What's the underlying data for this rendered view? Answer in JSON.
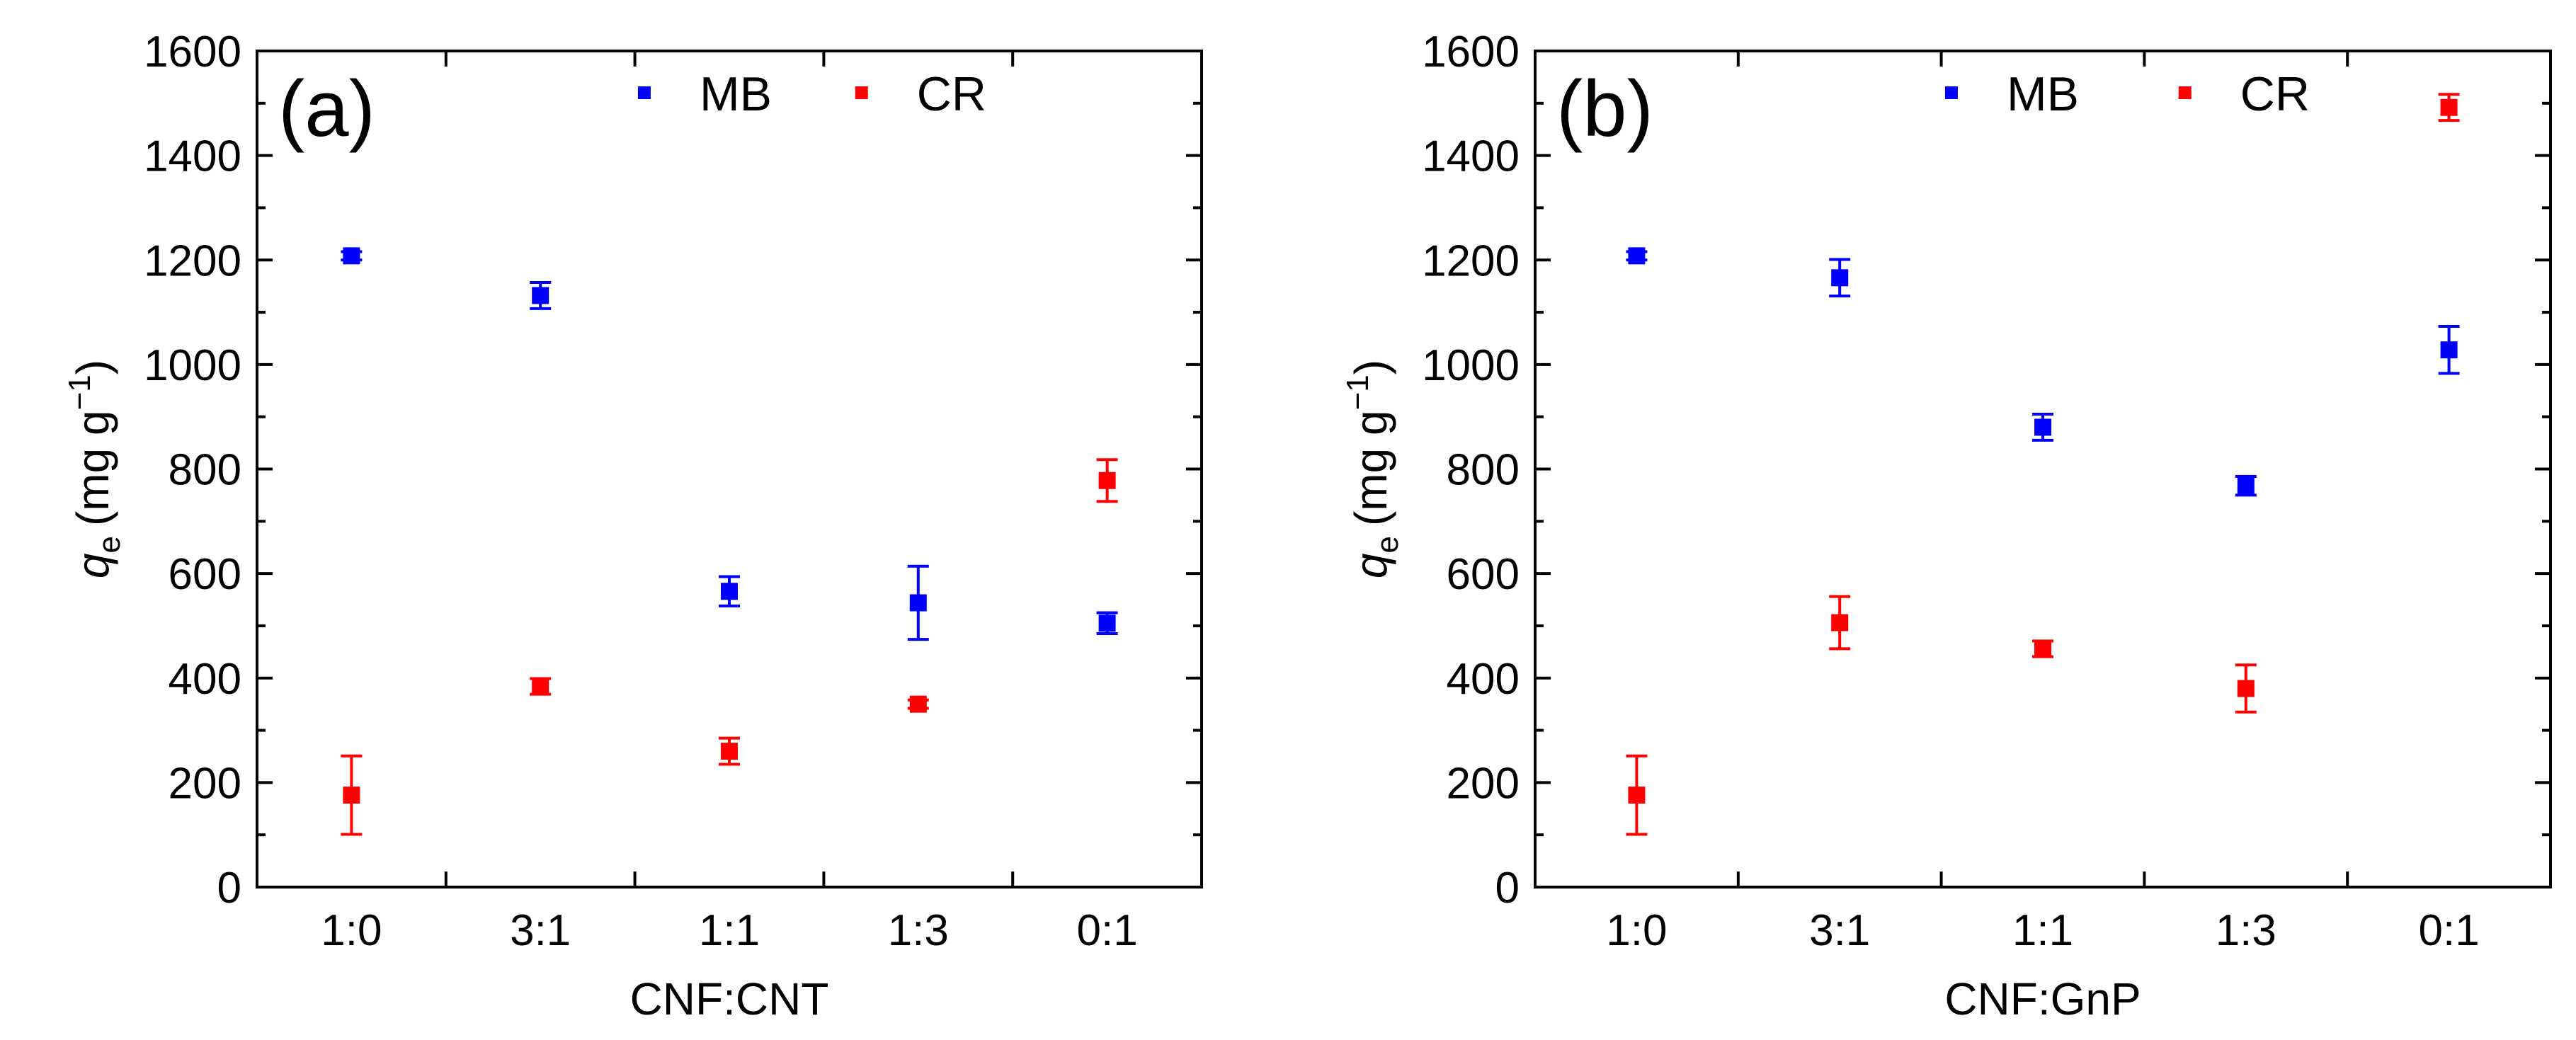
{
  "chart_data": [
    {
      "type": "scatter",
      "panel_label": "(a)",
      "xlabel": "CNF:CNT",
      "ylabel_main": "q",
      "ylabel_sub": "e",
      "ylabel_units": "(mg g",
      "ylabel_exp": "−1",
      "ylabel_close": ")",
      "categories": [
        "1:0",
        "3:1",
        "1:1",
        "1:3",
        "0:1"
      ],
      "ylim": [
        0,
        1600
      ],
      "yticks": [
        0,
        200,
        400,
        600,
        800,
        1000,
        1200,
        1400,
        1600
      ],
      "legend_position": "top-center",
      "series": [
        {
          "name": "MB",
          "color": "#0000ff",
          "values": [
            1208,
            1132,
            566,
            544,
            505
          ],
          "errors": [
            8,
            25,
            28,
            70,
            20
          ]
        },
        {
          "name": "CR",
          "color": "#ff0000",
          "values": [
            176,
            384,
            260,
            350,
            778
          ],
          "errors": [
            75,
            15,
            25,
            8,
            40
          ]
        }
      ]
    },
    {
      "type": "scatter",
      "panel_label": "(b)",
      "xlabel": "CNF:GnP",
      "ylabel_main": "q",
      "ylabel_sub": "e",
      "ylabel_units": "(mg g",
      "ylabel_exp": "−1",
      "ylabel_close": ")",
      "categories": [
        "1:0",
        "3:1",
        "1:1",
        "1:3",
        "0:1"
      ],
      "ylim": [
        0,
        1600
      ],
      "yticks": [
        0,
        200,
        400,
        600,
        800,
        1000,
        1200,
        1400,
        1600
      ],
      "legend_position": "top-center",
      "series": [
        {
          "name": "MB",
          "color": "#0000ff",
          "values": [
            1208,
            1166,
            880,
            768,
            1028
          ],
          "errors": [
            8,
            35,
            25,
            18,
            45
          ]
        },
        {
          "name": "CR",
          "color": "#ff0000",
          "values": [
            176,
            506,
            456,
            380,
            1492
          ],
          "errors": [
            75,
            50,
            15,
            45,
            25
          ]
        }
      ]
    }
  ]
}
